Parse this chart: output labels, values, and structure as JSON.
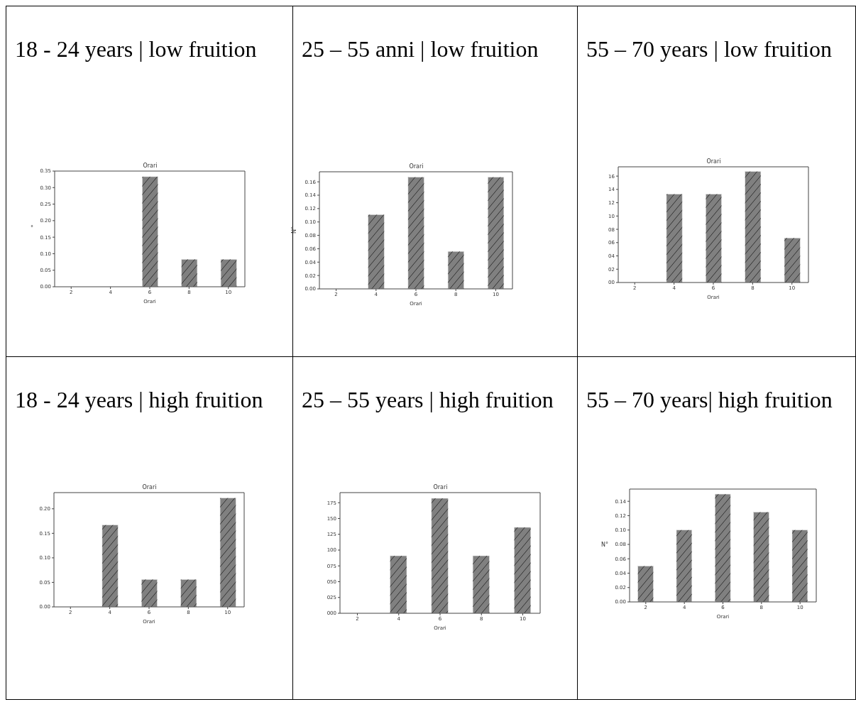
{
  "chart_data": [
    {
      "type": "bar",
      "title": "18 - 24 years | low fruition",
      "subtitle": "Orari",
      "xlabel": "Orari",
      "ylabel": "°",
      "x": [
        2,
        4,
        6,
        8,
        10
      ],
      "values": [
        0,
        0,
        0.333,
        0.083,
        0.083
      ],
      "color": "#808080",
      "xlim": [
        1.16,
        10.84
      ],
      "xticks": [
        2,
        4,
        6,
        8,
        10
      ],
      "ylim": [
        0,
        0.35
      ],
      "yticks": [
        {
          "value": 0,
          "label": "0.00"
        },
        0.05,
        {
          "value": 0.1,
          "label": "0.10"
        },
        0.15,
        {
          "value": 0.2,
          "label": "0.20"
        },
        0.25,
        {
          "value": 0.3,
          "label": "0.30"
        },
        0.35
      ]
    },
    {
      "type": "bar",
      "title": "25 – 55 anni | low fruition",
      "subtitle": "Orari",
      "xlabel": "Orari",
      "ylabel": "N°",
      "x": [
        2,
        4,
        6,
        8,
        10
      ],
      "values": [
        0,
        0.111,
        0.167,
        0.056,
        0.167
      ],
      "color": "#808080",
      "xlim": [
        1.16,
        10.84
      ],
      "xticks": [
        2,
        4,
        6,
        8,
        10
      ],
      "ylim": [
        0,
        0.175
      ],
      "yticks": [
        {
          "value": 0,
          "label": "0.00"
        },
        0.02,
        0.04,
        0.06,
        0.08,
        {
          "value": 0.1,
          "label": "0.10"
        },
        0.12,
        0.14,
        0.16
      ]
    },
    {
      "type": "bar",
      "title": "55 – 70 years | low fruition",
      "subtitle": "Orari",
      "xlabel": "Orari",
      "x": [
        2,
        4,
        6,
        8,
        10
      ],
      "values": [
        0,
        13.3,
        13.3,
        16.7,
        6.7
      ],
      "color": "#808080",
      "xlim": [
        1.16,
        10.84
      ],
      "xticks": [
        2,
        4,
        6,
        8,
        10
      ],
      "ylim": [
        0,
        17.4
      ],
      "yticks": [
        {
          "value": 0,
          "label": "00"
        },
        {
          "value": 2,
          "label": "02"
        },
        {
          "value": 4,
          "label": "04"
        },
        {
          "value": 6,
          "label": "06"
        },
        {
          "value": 8,
          "label": "08"
        },
        10,
        12,
        14,
        16
      ]
    },
    {
      "type": "bar",
      "title": "18 - 24 years | high fruition",
      "subtitle": "Orari",
      "xlabel": "Orari",
      "x": [
        2,
        4,
        6,
        8,
        10
      ],
      "values": [
        0,
        0.167,
        0.056,
        0.056,
        0.222
      ],
      "color": "#808080",
      "xlim": [
        1.16,
        10.84
      ],
      "xticks": [
        2,
        4,
        6,
        8,
        10
      ],
      "ylim": [
        0,
        0.233
      ],
      "yticks": [
        {
          "value": 0,
          "label": "0.00"
        },
        0.05,
        {
          "value": 0.1,
          "label": "0.10"
        },
        0.15,
        {
          "value": 0.2,
          "label": "0.20"
        }
      ]
    },
    {
      "type": "bar",
      "title": "25 – 55 years | high fruition",
      "subtitle": "Orari",
      "xlabel": "Orari",
      "x": [
        2,
        4,
        6,
        8,
        10
      ],
      "values": [
        0,
        91,
        182,
        91,
        136
      ],
      "color": "#808080",
      "xlim": [
        1.16,
        10.84
      ],
      "xticks": [
        2,
        4,
        6,
        8,
        10
      ],
      "ylim": [
        0,
        191
      ],
      "yticks": [
        {
          "value": 0,
          "label": "000"
        },
        {
          "value": 25,
          "label": "025"
        },
        {
          "value": 50,
          "label": "050"
        },
        {
          "value": 75,
          "label": "075"
        },
        100,
        125,
        150,
        175
      ]
    },
    {
      "type": "bar",
      "title": "55 – 70 years| high fruition",
      "xlabel": "Orari",
      "ylabel": "N°",
      "x": [
        2,
        4,
        6,
        8,
        10
      ],
      "values": [
        0.05,
        0.1,
        0.15,
        0.125,
        0.1
      ],
      "color": "#808080",
      "xlim": [
        1.16,
        10.84
      ],
      "xticks": [
        2,
        4,
        6,
        8,
        10
      ],
      "ylim": [
        0,
        0.157
      ],
      "yticks": [
        {
          "value": 0,
          "label": "0.00"
        },
        0.02,
        0.04,
        0.06,
        0.08,
        {
          "value": 0.1,
          "label": "0.10"
        },
        0.12,
        0.14
      ]
    }
  ]
}
